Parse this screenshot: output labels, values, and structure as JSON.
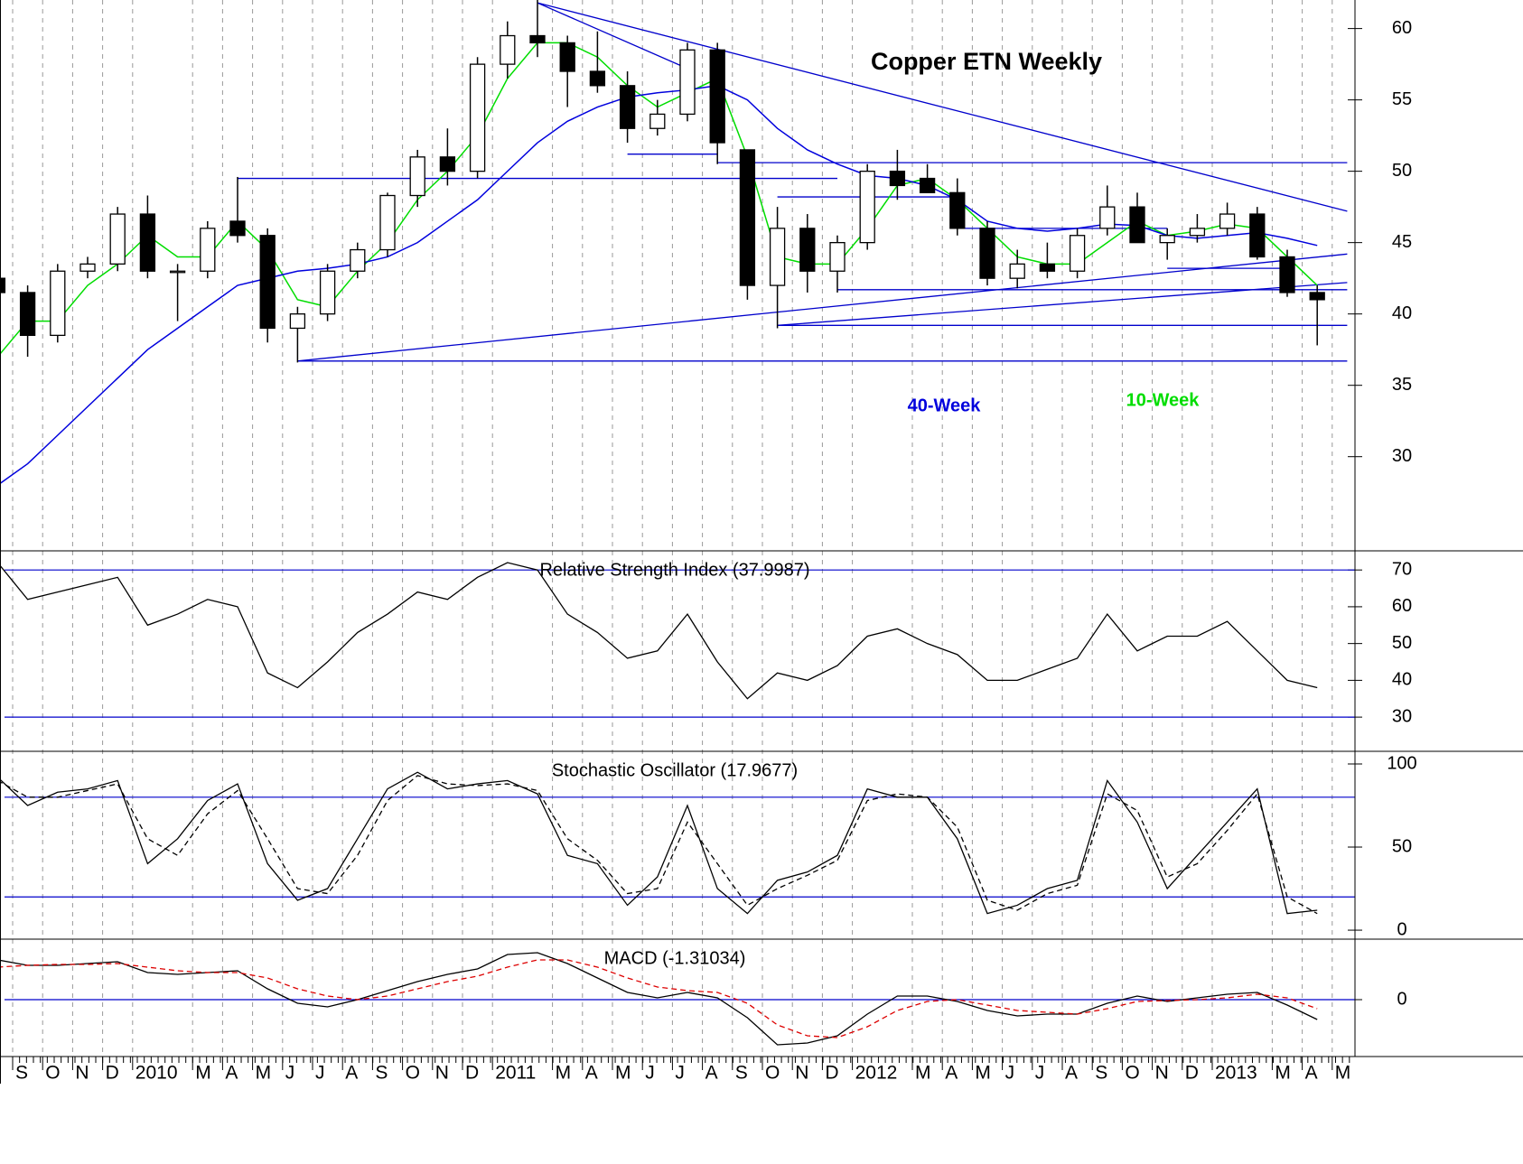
{
  "chart_data": [
    {
      "type": "candlestick",
      "title": "Copper ETN Weekly",
      "x": [
        "2009-08",
        "2009-09",
        "2009-10",
        "2009-11",
        "2009-12",
        "2010-01",
        "2010-02",
        "2010-03",
        "2010-04",
        "2010-05",
        "2010-06",
        "2010-07",
        "2010-08",
        "2010-09",
        "2010-10",
        "2010-11",
        "2010-12",
        "2011-01",
        "2011-02",
        "2011-03",
        "2011-04",
        "2011-05",
        "2011-06",
        "2011-07",
        "2011-08",
        "2011-09",
        "2011-10",
        "2011-11",
        "2011-12",
        "2012-01",
        "2012-02",
        "2012-03",
        "2012-04",
        "2012-05",
        "2012-06",
        "2012-07",
        "2012-08",
        "2012-09",
        "2012-10",
        "2012-11",
        "2012-12",
        "2013-01",
        "2013-02",
        "2013-03",
        "2013-04"
      ],
      "open": [
        42.5,
        41.5,
        38.5,
        43,
        43.5,
        47,
        43,
        43,
        46.5,
        45.5,
        39,
        40,
        43,
        44.5,
        48.3,
        51,
        50,
        57.5,
        59.5,
        59,
        57,
        56,
        53,
        54,
        58.5,
        51.5,
        42,
        46,
        43,
        45,
        50,
        49.5,
        48.5,
        46,
        42.5,
        43.5,
        43,
        46,
        47.5,
        45,
        45.5,
        46,
        47,
        44,
        41.5
      ],
      "high": [
        43,
        42,
        43.5,
        44,
        47.5,
        48.3,
        43.5,
        46.5,
        49.6,
        46,
        40.5,
        43.5,
        45,
        48.5,
        51.5,
        53,
        58,
        60.5,
        62,
        59.5,
        59.8,
        57,
        55,
        59,
        59,
        51.5,
        47.5,
        47,
        45.5,
        50.5,
        51.5,
        50.5,
        49.5,
        46.5,
        44.5,
        45,
        46,
        49,
        48.5,
        46,
        47,
        47.8,
        47.5,
        44.5,
        42
      ],
      "low": [
        40,
        37,
        38,
        42.5,
        43,
        42.5,
        39.5,
        42.5,
        45,
        38,
        36.6,
        39.5,
        42.5,
        44,
        47.5,
        49,
        49.5,
        56.5,
        58,
        54.5,
        55.5,
        52,
        52.5,
        53.5,
        50.5,
        41,
        39,
        41.5,
        41.5,
        44.5,
        48,
        48.5,
        45.5,
        42,
        41.8,
        42.5,
        42.5,
        45.5,
        45,
        43.8,
        45,
        45.5,
        43.8,
        41.2,
        37.8
      ],
      "close": [
        41.5,
        38.5,
        43,
        43.5,
        47,
        43,
        43,
        46,
        45.5,
        39,
        40,
        43,
        44.5,
        48.3,
        51,
        50,
        57.5,
        59.5,
        59,
        57,
        56,
        53,
        54,
        58.5,
        52,
        42,
        46,
        43,
        45,
        50,
        49,
        48.5,
        46,
        42.5,
        43.5,
        43,
        45.5,
        47.5,
        45,
        45.5,
        46,
        47,
        44,
        41.5,
        41
      ],
      "series": [
        {
          "name": "10-Week",
          "color": "#00dd00",
          "values": [
            37,
            39.5,
            39.5,
            42,
            43.5,
            45.5,
            44,
            44,
            46.5,
            44.5,
            41,
            40.5,
            43,
            45,
            48,
            50,
            52.5,
            56.5,
            59,
            59,
            58,
            56,
            54.5,
            55.5,
            56.5,
            51,
            44,
            43.5,
            43.5,
            46,
            49,
            49.5,
            48,
            46,
            44,
            43.5,
            43.5,
            45,
            46.5,
            45.5,
            45.8,
            46.3,
            46,
            44,
            42
          ]
        },
        {
          "name": "40-Week",
          "color": "#0000dd",
          "values": [
            28,
            29.5,
            31.5,
            33.5,
            35.5,
            37.5,
            39,
            40.5,
            42,
            42.5,
            43,
            43.2,
            43.5,
            44,
            45,
            46.5,
            48,
            50,
            52,
            53.5,
            54.5,
            55.2,
            55.5,
            55.7,
            56,
            55,
            53,
            51.5,
            50.5,
            49.7,
            49.5,
            49,
            48,
            46.5,
            46,
            45.8,
            46,
            46.3,
            46.2,
            45.5,
            45.3,
            45.5,
            45.7,
            45.3,
            44.8
          ]
        }
      ],
      "trendlines": [
        {
          "x": [
            "2011-02",
            "2013-05"
          ],
          "y": [
            61.8,
            47.2
          ]
        },
        {
          "x": [
            "2011-02",
            "2011-07"
          ],
          "y": [
            61.8,
            57.2
          ]
        },
        {
          "x": [
            "2010-06",
            "2013-05"
          ],
          "y": [
            36.7,
            44.2
          ]
        },
        {
          "x": [
            "2011-10",
            "2013-05"
          ],
          "y": [
            39.2,
            42.2
          ]
        },
        {
          "x": [
            "2010-06",
            "2013-05"
          ],
          "y": [
            36.7,
            36.7
          ]
        },
        {
          "x": [
            "2011-10",
            "2013-05"
          ],
          "y": [
            39.2,
            39.2
          ]
        },
        {
          "x": [
            "2010-04",
            "2011-12"
          ],
          "y": [
            49.5,
            49.5
          ]
        },
        {
          "x": [
            "2011-08",
            "2013-05"
          ],
          "y": [
            50.6,
            50.6
          ]
        },
        {
          "x": [
            "2011-05",
            "2011-08"
          ],
          "y": [
            51.2,
            51.2
          ]
        },
        {
          "x": [
            "2011-10",
            "2012-04"
          ],
          "y": [
            48.2,
            48.2
          ]
        },
        {
          "x": [
            "2011-12",
            "2013-05"
          ],
          "y": [
            41.7,
            41.7
          ]
        },
        {
          "x": [
            "2012-04",
            "2012-11"
          ],
          "y": [
            46,
            46
          ]
        },
        {
          "x": [
            "2012-11",
            "2013-03"
          ],
          "y": [
            43.2,
            43.2
          ]
        }
      ],
      "ylim": [
        23.4,
        62
      ],
      "yticks": [
        30,
        35,
        40,
        45,
        50,
        55,
        60
      ],
      "xticks": [
        {
          "value": "2009-09",
          "label": "S"
        },
        {
          "value": "2009-10",
          "label": "O"
        },
        {
          "value": "2009-11",
          "label": "N"
        },
        {
          "value": "2009-12",
          "label": "D"
        },
        {
          "value": "2010-01",
          "label": "2010"
        },
        {
          "value": "2010-03",
          "label": "M"
        },
        {
          "value": "2010-04",
          "label": "A"
        },
        {
          "value": "2010-05",
          "label": "M"
        },
        {
          "value": "2010-06",
          "label": "J"
        },
        {
          "value": "2010-07",
          "label": "J"
        },
        {
          "value": "2010-08",
          "label": "A"
        },
        {
          "value": "2010-09",
          "label": "S"
        },
        {
          "value": "2010-10",
          "label": "O"
        },
        {
          "value": "2010-11",
          "label": "N"
        },
        {
          "value": "2010-12",
          "label": "D"
        },
        {
          "value": "2011-01",
          "label": "2011"
        },
        {
          "value": "2011-03",
          "label": "M"
        },
        {
          "value": "2011-04",
          "label": "A"
        },
        {
          "value": "2011-05",
          "label": "M"
        },
        {
          "value": "2011-06",
          "label": "J"
        },
        {
          "value": "2011-07",
          "label": "J"
        },
        {
          "value": "2011-08",
          "label": "A"
        },
        {
          "value": "2011-09",
          "label": "S"
        },
        {
          "value": "2011-10",
          "label": "O"
        },
        {
          "value": "2011-11",
          "label": "N"
        },
        {
          "value": "2011-12",
          "label": "D"
        },
        {
          "value": "2012-01",
          "label": "2012"
        },
        {
          "value": "2012-03",
          "label": "M"
        },
        {
          "value": "2012-04",
          "label": "A"
        },
        {
          "value": "2012-05",
          "label": "M"
        },
        {
          "value": "2012-06",
          "label": "J"
        },
        {
          "value": "2012-07",
          "label": "J"
        },
        {
          "value": "2012-08",
          "label": "A"
        },
        {
          "value": "2012-09",
          "label": "S"
        },
        {
          "value": "2012-10",
          "label": "O"
        },
        {
          "value": "2012-11",
          "label": "N"
        },
        {
          "value": "2012-12",
          "label": "D"
        },
        {
          "value": "2013-01",
          "label": "2013"
        },
        {
          "value": "2013-03",
          "label": "M"
        },
        {
          "value": "2013-04",
          "label": "A"
        },
        {
          "value": "2013-05",
          "label": "M"
        }
      ]
    },
    {
      "type": "line",
      "title": "Relative Strength Index (37.9987)",
      "ylim": [
        20.7,
        75.2
      ],
      "yticks": [
        30,
        40,
        50,
        60,
        70
      ],
      "levels": [
        30,
        70
      ],
      "series": [
        {
          "color": "#000000",
          "values": [
            72,
            62,
            64,
            66,
            68,
            55,
            58,
            62,
            60,
            42,
            38,
            45,
            53,
            58,
            64,
            62,
            68,
            72,
            70,
            58,
            53,
            46,
            48,
            58,
            45,
            35,
            42,
            40,
            44,
            52,
            54,
            50,
            47,
            40,
            40,
            43,
            46,
            58,
            48,
            52,
            52,
            56,
            48,
            40,
            38
          ]
        }
      ]
    },
    {
      "type": "line",
      "title": "Stochastic Oscillator (17.9677)",
      "ylim": [
        -5.4,
        107.6
      ],
      "yticks": [
        0,
        50,
        100
      ],
      "levels": [
        20,
        80
      ],
      "series": [
        {
          "color": "#000000",
          "values": [
            92,
            75,
            83,
            85,
            90,
            40,
            55,
            78,
            88,
            40,
            18,
            25,
            55,
            85,
            95,
            85,
            88,
            90,
            82,
            45,
            40,
            15,
            32,
            75,
            25,
            10,
            30,
            35,
            45,
            85,
            80,
            80,
            55,
            10,
            15,
            25,
            30,
            90,
            65,
            25,
            45,
            65,
            85,
            10,
            12
          ]
        },
        {
          "color": "#000000",
          "dash": true,
          "values": [
            90,
            80,
            80,
            84,
            88,
            55,
            45,
            70,
            84,
            55,
            25,
            22,
            45,
            78,
            93,
            88,
            87,
            88,
            84,
            55,
            42,
            22,
            25,
            65,
            40,
            15,
            25,
            33,
            42,
            78,
            82,
            80,
            62,
            18,
            12,
            22,
            27,
            82,
            72,
            32,
            40,
            60,
            82,
            20,
            10
          ]
        }
      ]
    },
    {
      "type": "line",
      "title": "MACD (-1.31034)",
      "ylim": [
        -3.15,
        3.35
      ],
      "yticks": [
        0
      ],
      "levels": [
        0
      ],
      "series": [
        {
          "color": "#000000",
          "values": [
            2.2,
            1.9,
            1.9,
            2.0,
            2.1,
            1.5,
            1.4,
            1.5,
            1.6,
            0.6,
            -0.2,
            -0.4,
            0,
            0.5,
            1.0,
            1.4,
            1.7,
            2.5,
            2.6,
            2.0,
            1.2,
            0.4,
            0.1,
            0.4,
            0.1,
            -1.0,
            -2.5,
            -2.4,
            -2.0,
            -0.8,
            0.2,
            0.2,
            -0.1,
            -0.6,
            -0.9,
            -0.8,
            -0.8,
            -0.2,
            0.2,
            -0.1,
            0.1,
            0.3,
            0.4,
            -0.3,
            -1.1
          ]
        },
        {
          "color": "#dd0000",
          "dash": true,
          "values": [
            1.8,
            1.9,
            1.95,
            1.95,
            2.0,
            1.8,
            1.6,
            1.5,
            1.5,
            1.2,
            0.6,
            0.2,
            0.0,
            0.2,
            0.6,
            1.0,
            1.3,
            1.8,
            2.2,
            2.2,
            1.8,
            1.2,
            0.7,
            0.5,
            0.4,
            -0.2,
            -1.4,
            -2.0,
            -2.1,
            -1.5,
            -0.6,
            -0.1,
            0,
            -0.3,
            -0.6,
            -0.7,
            -0.8,
            -0.5,
            -0.1,
            -0.05,
            0.0,
            0.1,
            0.3,
            0.1,
            -0.5
          ]
        }
      ]
    }
  ]
}
